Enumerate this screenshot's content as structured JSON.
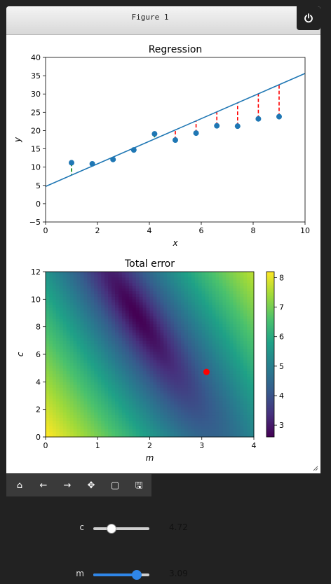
{
  "window": {
    "title": "Figure 1"
  },
  "icons": {
    "power": "power-icon",
    "resize": "resize-grip-icon",
    "toolbar": [
      "home-icon",
      "back-arrow-icon",
      "forward-arrow-icon",
      "pan-move-icon",
      "zoom-rect-icon",
      "save-disk-icon"
    ]
  },
  "toolbar": {
    "home_glyph": "⌂",
    "back_glyph": "←",
    "forward_glyph": "→",
    "pan_glyph": "✥",
    "zoom_glyph": "▢",
    "save_glyph": "🖫"
  },
  "sliders": [
    {
      "label": "c",
      "value_text": "4.72",
      "fraction": 0.33,
      "active": false
    },
    {
      "label": "m",
      "value_text": "3.09",
      "fraction": 0.77,
      "active": true
    }
  ],
  "colors": {
    "line": "#1f77b4",
    "points": "#1f77b4",
    "residual_over": "#ff0000",
    "residual_under": "#008000",
    "current_point": "#ff0000"
  },
  "chart_data": [
    {
      "type": "scatter",
      "title": "Regression",
      "xlabel": "x",
      "ylabel": "y",
      "xlim": [
        0,
        10
      ],
      "ylim": [
        -5,
        40
      ],
      "xticks": [
        "0",
        "2",
        "4",
        "6",
        "8",
        "10"
      ],
      "yticks": [
        "−5",
        "0",
        "5",
        "10",
        "15",
        "20",
        "25",
        "30",
        "35",
        "40"
      ],
      "points": {
        "x": [
          1.0,
          1.8,
          2.6,
          3.4,
          4.2,
          5.0,
          5.8,
          6.6,
          7.4,
          8.2,
          9.0
        ],
        "y": [
          11.2,
          10.9,
          12.1,
          14.7,
          19.1,
          17.4,
          19.3,
          21.3,
          21.2,
          23.2,
          23.8
        ]
      },
      "fit_line": {
        "m": 3.09,
        "c": 4.72
      },
      "residuals": "dashed vertical lines from points to fit line (red where point is below line, green where above)"
    },
    {
      "type": "heatmap",
      "title": "Total error",
      "xlabel": "m",
      "ylabel": "c",
      "xlim": [
        0,
        4
      ],
      "ylim": [
        0,
        12
      ],
      "xticks": [
        "0",
        "1",
        "2",
        "3",
        "4"
      ],
      "yticks": [
        "0",
        "2",
        "4",
        "6",
        "8",
        "10",
        "12"
      ],
      "colorbar": {
        "min": 2.6,
        "max": 8.2,
        "ticks": [
          "3",
          "4",
          "5",
          "6",
          "7",
          "8"
        ],
        "colormap": "viridis"
      },
      "minimum": {
        "m": 1.85,
        "c": 8.9
      },
      "current_point": {
        "m": 3.09,
        "c": 4.72
      }
    }
  ]
}
